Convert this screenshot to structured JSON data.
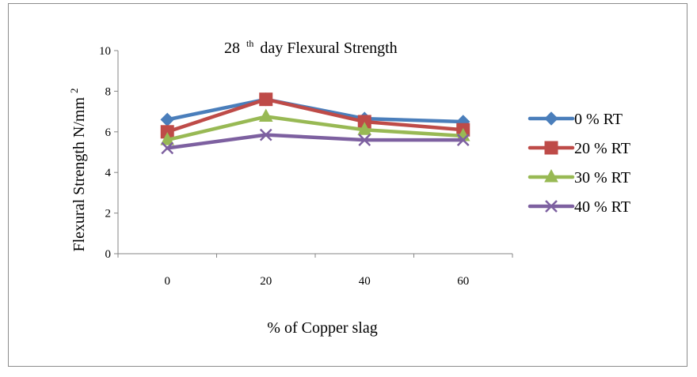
{
  "chart_data": {
    "type": "line",
    "title": "28",
    "title_superscript": "th",
    "title_rest": "day Flexural Strength",
    "xlabel": "% of  Copper slag",
    "ylabel": "Flexural  Strength N/mm",
    "ylabel_superscript": "2",
    "categories": [
      "0",
      "20",
      "40",
      "60"
    ],
    "ylim": [
      0,
      10
    ],
    "yticks": [
      "0",
      "2",
      "4",
      "6",
      "8",
      "10"
    ],
    "grid": false,
    "legend_position": "right",
    "series": [
      {
        "name": "0 % RT",
        "values": [
          6.6,
          7.6,
          6.65,
          6.5
        ],
        "color": "#4a7ebb",
        "marker": "diamond"
      },
      {
        "name": "20 % RT",
        "values": [
          6.0,
          7.6,
          6.5,
          6.1
        ],
        "color": "#be4b48",
        "marker": "square"
      },
      {
        "name": "30 % RT",
        "values": [
          5.6,
          6.75,
          6.1,
          5.8
        ],
        "color": "#98b954",
        "marker": "triangle"
      },
      {
        "name": "40 % RT",
        "values": [
          5.2,
          5.85,
          5.6,
          5.6
        ],
        "color": "#7d60a0",
        "marker": "x"
      }
    ]
  }
}
